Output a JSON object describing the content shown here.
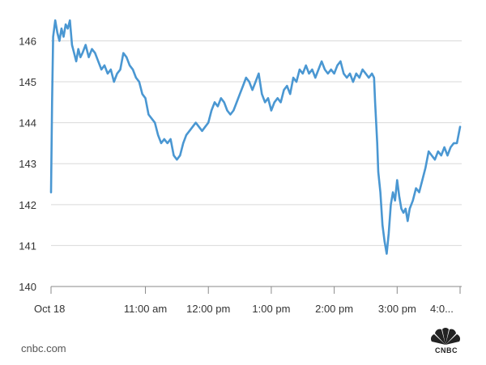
{
  "chart_data": {
    "type": "line",
    "title": "",
    "xlabel": "",
    "ylabel": "",
    "ylim": [
      140,
      146.8
    ],
    "y_ticks": [
      140,
      141,
      142,
      143,
      144,
      145,
      146
    ],
    "x_ticks": [
      {
        "t": "09:30",
        "label": "Oct 18"
      },
      {
        "t": "11:00",
        "label": "11:00 am"
      },
      {
        "t": "12:00",
        "label": "12:00 pm"
      },
      {
        "t": "13:00",
        "label": "1:00 pm"
      },
      {
        "t": "14:00",
        "label": "2:00 pm"
      },
      {
        "t": "15:00",
        "label": "3:00 pm"
      },
      {
        "t": "16:00",
        "label": "4:0..."
      }
    ],
    "xlim": [
      "09:30",
      "16:00"
    ],
    "grid": true,
    "series": [
      {
        "color": "#4a97d2",
        "points": [
          [
            "09:30",
            142.3
          ],
          [
            "09:31",
            144.5
          ],
          [
            "09:32",
            146.1
          ],
          [
            "09:33",
            146.3
          ],
          [
            "09:34",
            146.5
          ],
          [
            "09:36",
            146.2
          ],
          [
            "09:38",
            146.0
          ],
          [
            "09:40",
            146.3
          ],
          [
            "09:42",
            146.1
          ],
          [
            "09:44",
            146.4
          ],
          [
            "09:46",
            146.3
          ],
          [
            "09:48",
            146.5
          ],
          [
            "09:50",
            145.9
          ],
          [
            "09:52",
            145.7
          ],
          [
            "09:54",
            145.5
          ],
          [
            "09:56",
            145.8
          ],
          [
            "09:58",
            145.6
          ],
          [
            "10:00",
            145.7
          ],
          [
            "10:03",
            145.9
          ],
          [
            "10:06",
            145.6
          ],
          [
            "10:09",
            145.8
          ],
          [
            "10:12",
            145.7
          ],
          [
            "10:15",
            145.5
          ],
          [
            "10:18",
            145.3
          ],
          [
            "10:21",
            145.4
          ],
          [
            "10:24",
            145.2
          ],
          [
            "10:27",
            145.3
          ],
          [
            "10:30",
            145.0
          ],
          [
            "10:33",
            145.2
          ],
          [
            "10:36",
            145.3
          ],
          [
            "10:39",
            145.7
          ],
          [
            "10:42",
            145.6
          ],
          [
            "10:45",
            145.4
          ],
          [
            "10:48",
            145.3
          ],
          [
            "10:51",
            145.1
          ],
          [
            "10:54",
            145.0
          ],
          [
            "10:57",
            144.7
          ],
          [
            "11:00",
            144.6
          ],
          [
            "11:03",
            144.2
          ],
          [
            "11:06",
            144.1
          ],
          [
            "11:09",
            144.0
          ],
          [
            "11:12",
            143.7
          ],
          [
            "11:15",
            143.5
          ],
          [
            "11:18",
            143.6
          ],
          [
            "11:21",
            143.5
          ],
          [
            "11:24",
            143.6
          ],
          [
            "11:27",
            143.2
          ],
          [
            "11:30",
            143.1
          ],
          [
            "11:33",
            143.2
          ],
          [
            "11:36",
            143.5
          ],
          [
            "11:39",
            143.7
          ],
          [
            "11:42",
            143.8
          ],
          [
            "11:45",
            143.9
          ],
          [
            "11:48",
            144.0
          ],
          [
            "11:51",
            143.9
          ],
          [
            "11:54",
            143.8
          ],
          [
            "11:57",
            143.9
          ],
          [
            "12:00",
            144.0
          ],
          [
            "12:03",
            144.3
          ],
          [
            "12:06",
            144.5
          ],
          [
            "12:09",
            144.4
          ],
          [
            "12:12",
            144.6
          ],
          [
            "12:15",
            144.5
          ],
          [
            "12:18",
            144.3
          ],
          [
            "12:21",
            144.2
          ],
          [
            "12:24",
            144.3
          ],
          [
            "12:27",
            144.5
          ],
          [
            "12:30",
            144.7
          ],
          [
            "12:33",
            144.9
          ],
          [
            "12:36",
            145.1
          ],
          [
            "12:39",
            145.0
          ],
          [
            "12:42",
            144.8
          ],
          [
            "12:45",
            145.0
          ],
          [
            "12:48",
            145.2
          ],
          [
            "12:51",
            144.7
          ],
          [
            "12:54",
            144.5
          ],
          [
            "12:57",
            144.6
          ],
          [
            "13:00",
            144.3
          ],
          [
            "13:03",
            144.5
          ],
          [
            "13:06",
            144.6
          ],
          [
            "13:09",
            144.5
          ],
          [
            "13:12",
            144.8
          ],
          [
            "13:15",
            144.9
          ],
          [
            "13:18",
            144.7
          ],
          [
            "13:21",
            145.1
          ],
          [
            "13:24",
            145.0
          ],
          [
            "13:27",
            145.3
          ],
          [
            "13:30",
            145.2
          ],
          [
            "13:33",
            145.4
          ],
          [
            "13:36",
            145.2
          ],
          [
            "13:39",
            145.3
          ],
          [
            "13:42",
            145.1
          ],
          [
            "13:45",
            145.3
          ],
          [
            "13:48",
            145.5
          ],
          [
            "13:51",
            145.3
          ],
          [
            "13:54",
            145.2
          ],
          [
            "13:57",
            145.3
          ],
          [
            "14:00",
            145.2
          ],
          [
            "14:03",
            145.4
          ],
          [
            "14:06",
            145.5
          ],
          [
            "14:09",
            145.2
          ],
          [
            "14:12",
            145.1
          ],
          [
            "14:15",
            145.2
          ],
          [
            "14:18",
            145.0
          ],
          [
            "14:21",
            145.2
          ],
          [
            "14:24",
            145.1
          ],
          [
            "14:27",
            145.3
          ],
          [
            "14:30",
            145.2
          ],
          [
            "14:33",
            145.1
          ],
          [
            "14:36",
            145.2
          ],
          [
            "14:38",
            145.1
          ],
          [
            "14:39",
            144.5
          ],
          [
            "14:40",
            144.0
          ],
          [
            "14:41",
            143.5
          ],
          [
            "14:42",
            142.8
          ],
          [
            "14:44",
            142.3
          ],
          [
            "14:46",
            141.5
          ],
          [
            "14:48",
            141.1
          ],
          [
            "14:50",
            140.8
          ],
          [
            "14:52",
            141.3
          ],
          [
            "14:54",
            142.0
          ],
          [
            "14:56",
            142.3
          ],
          [
            "14:58",
            142.1
          ],
          [
            "15:00",
            142.6
          ],
          [
            "15:02",
            142.2
          ],
          [
            "15:04",
            141.9
          ],
          [
            "15:06",
            141.8
          ],
          [
            "15:08",
            141.9
          ],
          [
            "15:10",
            141.6
          ],
          [
            "15:12",
            141.9
          ],
          [
            "15:15",
            142.1
          ],
          [
            "15:18",
            142.4
          ],
          [
            "15:21",
            142.3
          ],
          [
            "15:24",
            142.6
          ],
          [
            "15:27",
            142.9
          ],
          [
            "15:30",
            143.3
          ],
          [
            "15:33",
            143.2
          ],
          [
            "15:36",
            143.1
          ],
          [
            "15:39",
            143.3
          ],
          [
            "15:42",
            143.2
          ],
          [
            "15:45",
            143.4
          ],
          [
            "15:48",
            143.2
          ],
          [
            "15:51",
            143.4
          ],
          [
            "15:54",
            143.5
          ],
          [
            "15:57",
            143.5
          ],
          [
            "16:00",
            143.9
          ]
        ]
      }
    ]
  },
  "footer": {
    "source": "cnbc.com",
    "logo_text": "CNBC"
  }
}
